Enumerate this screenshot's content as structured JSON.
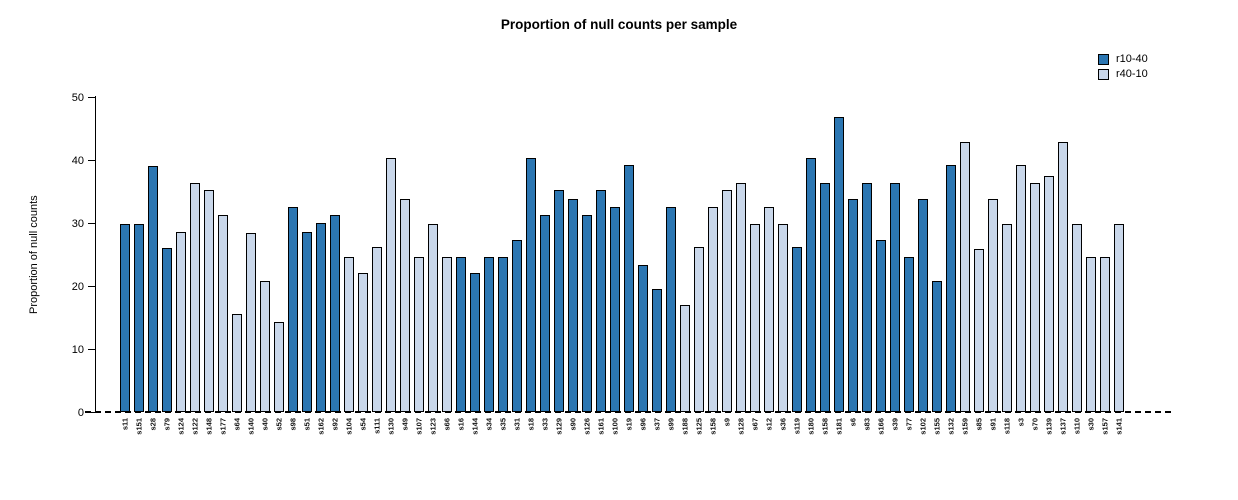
{
  "chart_data": {
    "type": "bar",
    "title": "Proportion of null counts per sample",
    "xlabel": "",
    "ylabel": "Proportion of null counts",
    "ylim": [
      0,
      50
    ],
    "yticks": [
      0,
      10,
      20,
      30,
      40,
      50
    ],
    "grid": false,
    "legend_position": "top-right",
    "legend": [
      {
        "label": "r10-40",
        "color": "#2b76b2"
      },
      {
        "label": "r40-10",
        "color": "#c9d7ea"
      }
    ],
    "bars": [
      {
        "label": "s11",
        "value": 29.8,
        "group": "r10-40"
      },
      {
        "label": "s151",
        "value": 29.8,
        "group": "r10-40"
      },
      {
        "label": "s28",
        "value": 39.0,
        "group": "r10-40"
      },
      {
        "label": "s79",
        "value": 26.0,
        "group": "r10-40"
      },
      {
        "label": "s124",
        "value": 28.6,
        "group": "r40-10"
      },
      {
        "label": "s122",
        "value": 36.3,
        "group": "r40-10"
      },
      {
        "label": "s148",
        "value": 35.2,
        "group": "r40-10"
      },
      {
        "label": "s177",
        "value": 31.2,
        "group": "r40-10"
      },
      {
        "label": "s64",
        "value": 15.6,
        "group": "r40-10"
      },
      {
        "label": "s140",
        "value": 28.5,
        "group": "r40-10"
      },
      {
        "label": "s40",
        "value": 20.8,
        "group": "r40-10"
      },
      {
        "label": "s52",
        "value": 14.3,
        "group": "r40-10"
      },
      {
        "label": "s98",
        "value": 32.5,
        "group": "r10-40"
      },
      {
        "label": "s51",
        "value": 28.6,
        "group": "r10-40"
      },
      {
        "label": "s162",
        "value": 30.0,
        "group": "r10-40"
      },
      {
        "label": "s92",
        "value": 31.2,
        "group": "r10-40"
      },
      {
        "label": "s104",
        "value": 24.6,
        "group": "r40-10"
      },
      {
        "label": "s54",
        "value": 22.1,
        "group": "r40-10"
      },
      {
        "label": "s111",
        "value": 26.2,
        "group": "r40-10"
      },
      {
        "label": "s130",
        "value": 40.3,
        "group": "r40-10"
      },
      {
        "label": "s49",
        "value": 33.8,
        "group": "r40-10"
      },
      {
        "label": "s107",
        "value": 24.6,
        "group": "r40-10"
      },
      {
        "label": "s123",
        "value": 29.8,
        "group": "r40-10"
      },
      {
        "label": "s66",
        "value": 24.6,
        "group": "r40-10"
      },
      {
        "label": "s16",
        "value": 24.6,
        "group": "r10-40"
      },
      {
        "label": "s144",
        "value": 22.1,
        "group": "r10-40"
      },
      {
        "label": "s34",
        "value": 24.6,
        "group": "r10-40"
      },
      {
        "label": "s35",
        "value": 24.6,
        "group": "r10-40"
      },
      {
        "label": "s31",
        "value": 27.3,
        "group": "r10-40"
      },
      {
        "label": "s18",
        "value": 40.3,
        "group": "r10-40"
      },
      {
        "label": "s33",
        "value": 31.2,
        "group": "r10-40"
      },
      {
        "label": "s129",
        "value": 35.2,
        "group": "r10-40"
      },
      {
        "label": "s90",
        "value": 33.8,
        "group": "r10-40"
      },
      {
        "label": "s126",
        "value": 31.2,
        "group": "r10-40"
      },
      {
        "label": "s161",
        "value": 35.2,
        "group": "r10-40"
      },
      {
        "label": "s100",
        "value": 32.5,
        "group": "r10-40"
      },
      {
        "label": "s19",
        "value": 39.2,
        "group": "r10-40"
      },
      {
        "label": "s96",
        "value": 23.4,
        "group": "r10-40"
      },
      {
        "label": "s37",
        "value": 19.5,
        "group": "r10-40"
      },
      {
        "label": "s99",
        "value": 32.5,
        "group": "r10-40"
      },
      {
        "label": "s188",
        "value": 17.0,
        "group": "r40-10"
      },
      {
        "label": "s125",
        "value": 26.2,
        "group": "r40-10"
      },
      {
        "label": "s158",
        "value": 32.5,
        "group": "r40-10"
      },
      {
        "label": "s9",
        "value": 35.2,
        "group": "r40-10"
      },
      {
        "label": "s128",
        "value": 36.3,
        "group": "r40-10"
      },
      {
        "label": "s67",
        "value": 29.8,
        "group": "r40-10"
      },
      {
        "label": "s12",
        "value": 32.5,
        "group": "r40-10"
      },
      {
        "label": "s36",
        "value": 29.8,
        "group": "r40-10"
      },
      {
        "label": "s119",
        "value": 26.2,
        "group": "r10-40"
      },
      {
        "label": "s180",
        "value": 40.3,
        "group": "r10-40"
      },
      {
        "label": "s158",
        "value": 36.3,
        "group": "r10-40"
      },
      {
        "label": "s181",
        "value": 46.8,
        "group": "r10-40"
      },
      {
        "label": "s6",
        "value": 33.8,
        "group": "r10-40"
      },
      {
        "label": "s83",
        "value": 36.3,
        "group": "r10-40"
      },
      {
        "label": "s166",
        "value": 27.3,
        "group": "r10-40"
      },
      {
        "label": "s39",
        "value": 36.3,
        "group": "r10-40"
      },
      {
        "label": "s77",
        "value": 24.6,
        "group": "r10-40"
      },
      {
        "label": "s102",
        "value": 33.8,
        "group": "r10-40"
      },
      {
        "label": "s155",
        "value": 20.8,
        "group": "r10-40"
      },
      {
        "label": "s132",
        "value": 39.2,
        "group": "r10-40"
      },
      {
        "label": "s159",
        "value": 42.8,
        "group": "r40-10"
      },
      {
        "label": "s85",
        "value": 25.9,
        "group": "r40-10"
      },
      {
        "label": "s91",
        "value": 33.8,
        "group": "r40-10"
      },
      {
        "label": "s118",
        "value": 29.8,
        "group": "r40-10"
      },
      {
        "label": "s3",
        "value": 39.2,
        "group": "r40-10"
      },
      {
        "label": "s70",
        "value": 36.3,
        "group": "r40-10"
      },
      {
        "label": "s139",
        "value": 37.5,
        "group": "r40-10"
      },
      {
        "label": "s137",
        "value": 42.8,
        "group": "r40-10"
      },
      {
        "label": "s110",
        "value": 29.8,
        "group": "r40-10"
      },
      {
        "label": "s30",
        "value": 24.6,
        "group": "r40-10"
      },
      {
        "label": "s157",
        "value": 24.6,
        "group": "r40-10"
      },
      {
        "label": "s141",
        "value": 29.8,
        "group": "r40-10"
      }
    ]
  }
}
